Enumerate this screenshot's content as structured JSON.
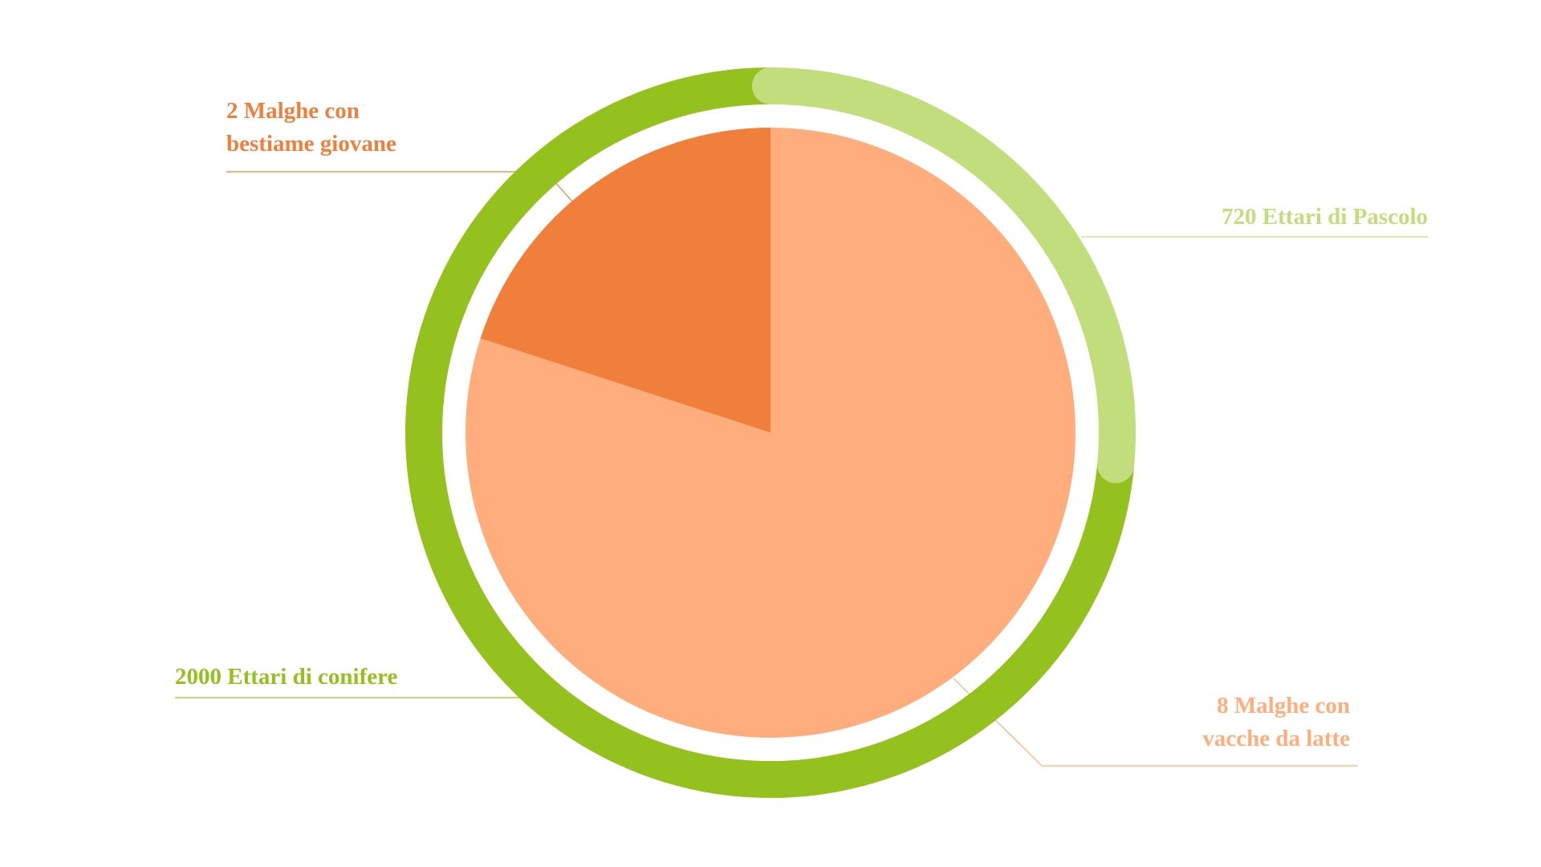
{
  "chart_data": [
    {
      "type": "pie",
      "categories": [
        "2 Malghe con\nbestiame giovane",
        "8 Malghe con\nvacche da latte"
      ],
      "values": [
        2,
        8
      ],
      "colors": [
        "#f07f3c",
        "#ffad7d"
      ]
    },
    {
      "type": "ring",
      "categories": [
        "720 Ettari di Pascolo",
        "2000 Ettari di conifere"
      ],
      "values": [
        720,
        2000
      ],
      "colors": [
        "#c1dd7c",
        "#95c11f"
      ]
    }
  ]
}
